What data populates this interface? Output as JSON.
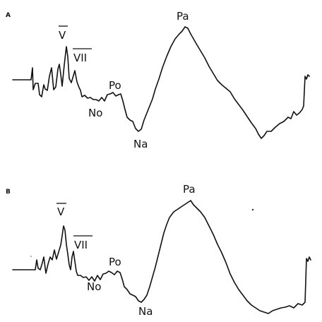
{
  "chart_data": [
    {
      "type": "line",
      "panel": "A",
      "peaks": [
        {
          "label": "V",
          "overbar": true
        },
        {
          "label": "VII",
          "overbar": true
        },
        {
          "label": "No",
          "overbar": false
        },
        {
          "label": "Po",
          "overbar": false
        },
        {
          "label": "Na",
          "overbar": false
        },
        {
          "label": "Pa",
          "overbar": false
        }
      ]
    },
    {
      "type": "line",
      "panel": "B",
      "peaks": [
        {
          "label": "V",
          "overbar": true
        },
        {
          "label": "VII",
          "overbar": true
        },
        {
          "label": "No",
          "overbar": false
        },
        {
          "label": "Po",
          "overbar": false
        },
        {
          "label": "Na",
          "overbar": false
        },
        {
          "label": "Pa",
          "overbar": false
        }
      ]
    }
  ]
}
